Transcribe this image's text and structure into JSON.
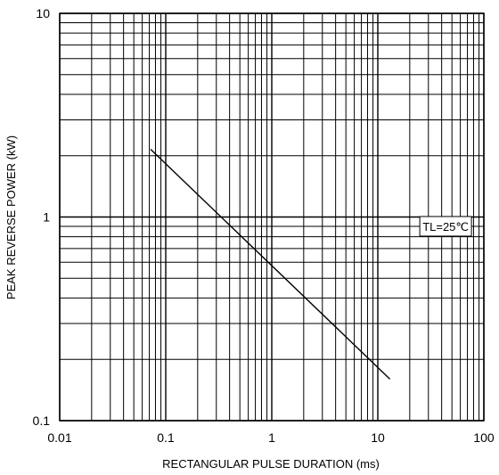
{
  "chart_data": {
    "type": "line",
    "x_scale": "log",
    "y_scale": "log",
    "xlim": [
      0.01,
      100
    ],
    "ylim": [
      0.1,
      10
    ],
    "grid": true,
    "xlabel": "RECTANGULAR PULSE DURATION   (ms)",
    "ylabel": "PEAK REVERSE POWER   (kW)",
    "x_ticks": [
      {
        "value": 0.01,
        "label": "0.01"
      },
      {
        "value": 0.1,
        "label": "0.1"
      },
      {
        "value": 1,
        "label": "1"
      },
      {
        "value": 10,
        "label": "10"
      },
      {
        "value": 100,
        "label": "100"
      }
    ],
    "y_ticks": [
      {
        "value": 0.1,
        "label": "0.1"
      },
      {
        "value": 1,
        "label": "1"
      },
      {
        "value": 10,
        "label": "10"
      }
    ],
    "series": [
      {
        "points": [
          {
            "x": 0.072,
            "y": 2.15
          },
          {
            "x": 13.0,
            "y": 0.16
          }
        ]
      }
    ],
    "annotations": [
      {
        "text": "TL=25℃",
        "x": 55,
        "y": 0.9
      }
    ],
    "colors": {
      "grid": "#000000",
      "line": "#000000",
      "background": "#ffffff"
    }
  }
}
